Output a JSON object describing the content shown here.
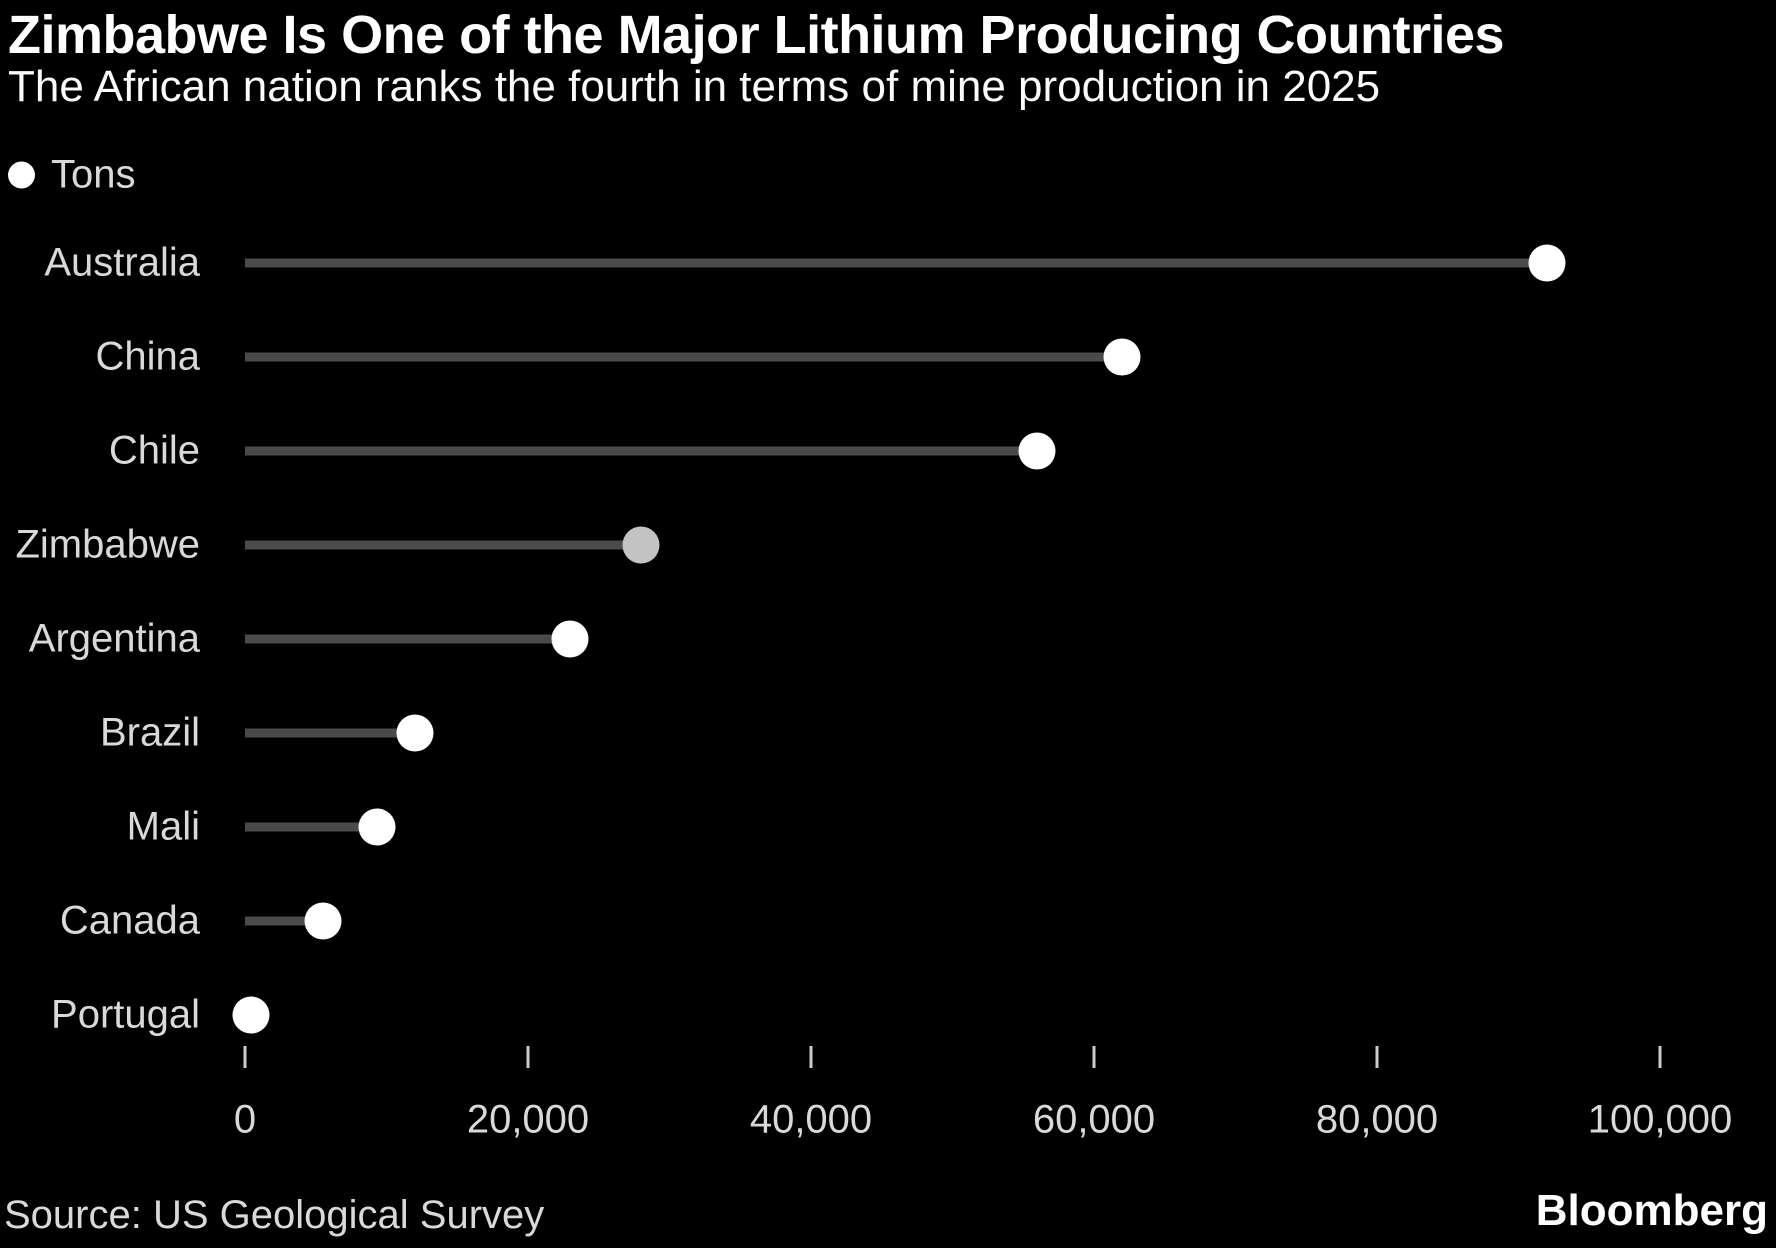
{
  "header": {
    "title": "Zimbabwe Is One of the Major Lithium Producing Countries",
    "subtitle": "The African nation ranks the fourth in terms of mine production in 2025"
  },
  "legend": {
    "label": "Tons"
  },
  "chart_data": {
    "type": "bar",
    "variant": "lollipop",
    "orientation": "horizontal",
    "unit": "tons",
    "categories": [
      "Australia",
      "China",
      "Chile",
      "Zimbabwe",
      "Argentina",
      "Brazil",
      "Mali",
      "Canada",
      "Portugal"
    ],
    "values": [
      92000,
      62000,
      56000,
      28000,
      23000,
      12000,
      9300,
      5500,
      400
    ],
    "highlight_category": "Zimbabwe",
    "xlim": [
      0,
      100000
    ],
    "x_ticks": [
      0,
      20000,
      40000,
      60000,
      80000,
      100000
    ],
    "x_tick_labels": [
      "0",
      "20,000",
      "40,000",
      "60,000",
      "80,000",
      "100,000"
    ],
    "grid": false,
    "legend_position": "top-left",
    "colors": {
      "background": "#000000",
      "dot": "#ffffff",
      "highlight_dot": "#c3c3c3",
      "stem_line": "#4a4a4a",
      "label_text": "#d9d9d9",
      "title_text": "#ffffff"
    }
  },
  "footer": {
    "source": "Source: US Geological Survey",
    "brand": "Bloomberg"
  }
}
